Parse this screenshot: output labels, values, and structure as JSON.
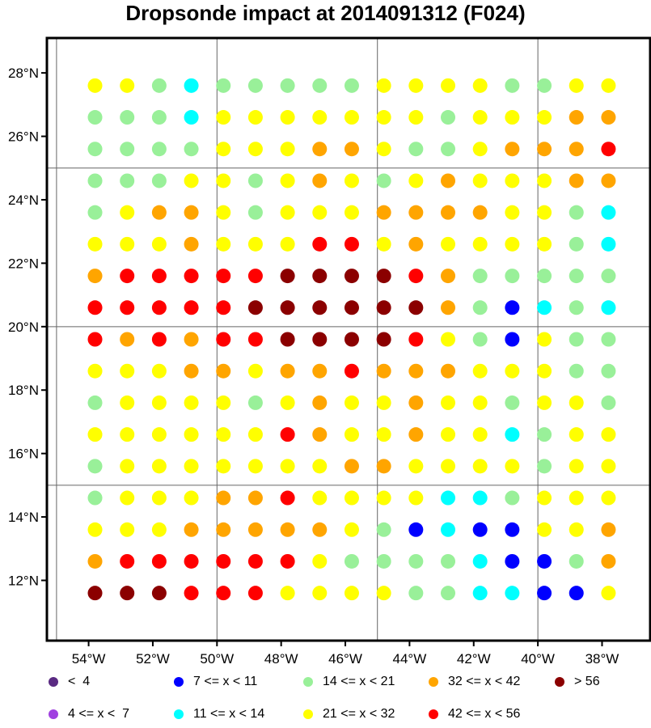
{
  "chart_data": {
    "type": "scatter",
    "title": "Dropsonde impact at 2014091312 (F024)",
    "x_tick_labels": [
      "54°W",
      "52°W",
      "50°W",
      "48°W",
      "46°W",
      "44°W",
      "42°W",
      "40°W",
      "38°W"
    ],
    "y_tick_labels": [
      "12°N",
      "14°N",
      "16°N",
      "18°N",
      "20°N",
      "22°N",
      "24°N",
      "26°N",
      "28°N"
    ],
    "x_ticks": [
      -54,
      -52,
      -50,
      -48,
      -46,
      -44,
      -42,
      -40,
      -38
    ],
    "y_ticks": [
      12,
      14,
      16,
      18,
      20,
      22,
      24,
      26,
      28
    ],
    "xlim": [
      -55.3,
      -36.5
    ],
    "ylim": [
      10.1,
      29.1
    ],
    "grid_lon": [
      -50,
      -45,
      -40
    ],
    "grid_lat": [
      15,
      20,
      25
    ],
    "lons": [
      -53.8,
      -52.8,
      -51.8,
      -50.8,
      -49.8,
      -48.8,
      -47.8,
      -46.8,
      -45.8,
      -44.8,
      -43.8,
      -42.8,
      -41.8,
      -40.8,
      -39.8,
      -38.8,
      -37.8
    ],
    "lats": [
      27.6,
      26.6,
      25.6,
      24.6,
      23.6,
      22.6,
      21.6,
      20.6,
      19.6,
      18.6,
      17.6,
      16.6,
      15.6,
      14.6,
      13.6,
      12.6,
      11.6
    ],
    "class_colors": {
      "V": "#5a2a82",
      "P": "#a040e0",
      "B": "#0000ff",
      "C": "#00ffff",
      "G": "#99f099",
      "Y": "#ffff00",
      "O": "#ffa500",
      "R": "#ff0000",
      "D": "#8b0000"
    },
    "grid_classes": [
      "YYGCGGGGGYYYYGGYY",
      "GGGCYYYYYYYGYYYOO",
      "GGGGYYYOOYGGYOOOR",
      "GGGYYGYOYGYOYYYOO",
      "GYOOYGYYYOOOOYYGC",
      "YYYOYYYRRYOYYYYGC",
      "ORRRRRDDDDROGGGGG",
      "RRRRRDDDDDDOGBCGC",
      "RORORRDDDDRYGBYGG",
      "YYYOOYOOROOOYYYGG",
      "GYYYYGYOYYOYYGYYG",
      "YYYYYYROYYOYYCGYY",
      "GYYYYYYYOOYYYYGYY",
      "GYYYOORYYYYCCGYYY",
      "YYYOOOOOYGBCBBYYO",
      "ORRRRRRYGGGGCBBGO",
      "DDDRRRYYYYGGCCBBY"
    ],
    "legend": [
      {
        "label": "<  4",
        "class": "V"
      },
      {
        "label": "4 <= x <  7",
        "class": "P"
      },
      {
        "label": "7 <= x < 11",
        "class": "B"
      },
      {
        "label": "11 <= x < 14",
        "class": "C"
      },
      {
        "label": "14 <= x < 21",
        "class": "G"
      },
      {
        "label": "21 <= x < 32",
        "class": "Y"
      },
      {
        "label": "32 <= x < 42",
        "class": "O"
      },
      {
        "label": "42 <= x < 56",
        "class": "R"
      },
      {
        "label": "> 56",
        "class": "D"
      }
    ]
  }
}
